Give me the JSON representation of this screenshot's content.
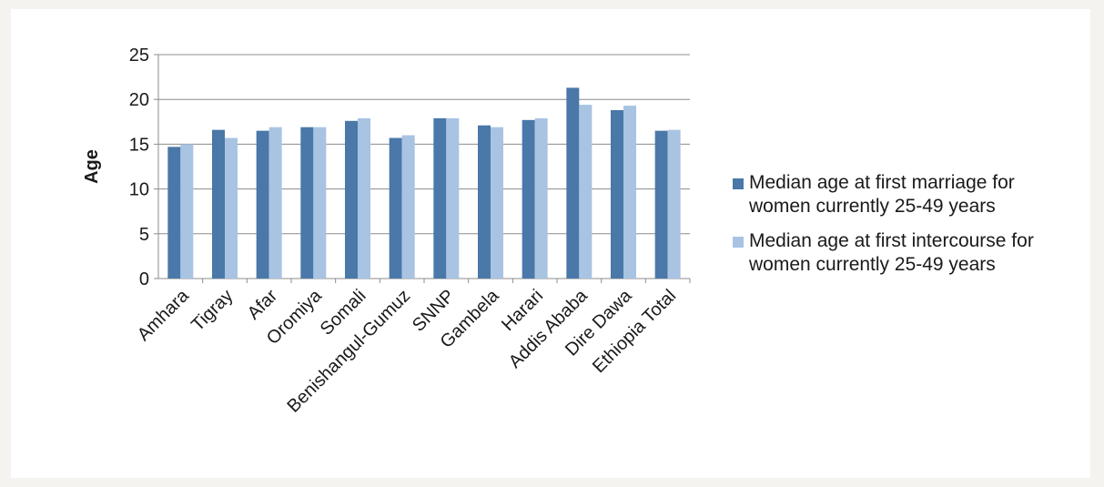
{
  "chart_data": {
    "type": "bar",
    "title": "",
    "xlabel": "",
    "ylabel": "Age",
    "ylim": [
      0,
      25
    ],
    "yticks": [
      0,
      5,
      10,
      15,
      20,
      25
    ],
    "grid": true,
    "legend_position": "right",
    "categories": [
      "Amhara",
      "Tigray",
      "Afar",
      "Oromiya",
      "Somali",
      "Benishangul-Gumuz",
      "SNNP",
      "Gambela",
      "Harari",
      "Addis Ababa",
      "Dire Dawa",
      "Ethiopia Total"
    ],
    "series": [
      {
        "name": "Median age at first marriage for women currently 25-49 years",
        "color": "#4a78a8",
        "values": [
          14.7,
          16.6,
          16.5,
          16.9,
          17.6,
          15.7,
          17.9,
          17.1,
          17.7,
          21.3,
          18.8,
          16.5
        ]
      },
      {
        "name": "Median age at first intercourse for women currently 25-49 years",
        "color": "#a9c3e3",
        "values": [
          15.0,
          15.7,
          16.9,
          16.9,
          17.9,
          16.0,
          17.9,
          16.9,
          17.9,
          19.4,
          19.3,
          16.6
        ]
      }
    ]
  }
}
